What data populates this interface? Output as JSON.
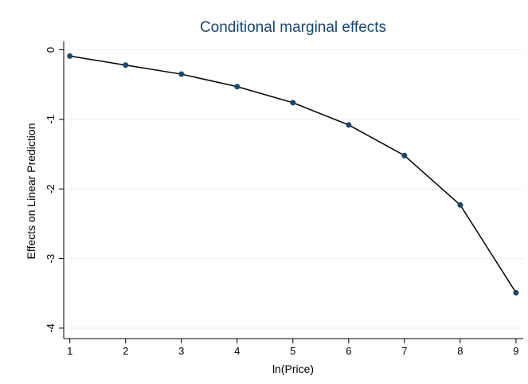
{
  "chart_data": {
    "type": "line",
    "title": "Conditional marginal effects",
    "x_label": "ln(Price)",
    "y_label": "Effects on Linear Prediction",
    "x": [
      1,
      2,
      3,
      4,
      5,
      6,
      7,
      8,
      9
    ],
    "series": [
      {
        "color": "#1a476f",
        "values": [
          -0.09,
          -0.22,
          -0.35,
          -0.53,
          -0.76,
          -1.08,
          -1.52,
          -2.23,
          -3.49
        ]
      }
    ],
    "xlim": [
      0.89,
      9.13
    ],
    "ylim": [
      -4.15,
      0.12
    ],
    "xticks": [
      1,
      2,
      3,
      4,
      5,
      6,
      7,
      8,
      9
    ],
    "yticks": [
      0,
      -1,
      -2,
      -3,
      -4
    ],
    "grid": true
  }
}
